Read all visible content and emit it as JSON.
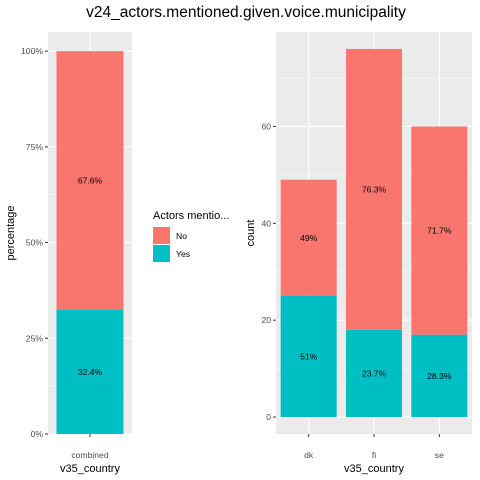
{
  "title": "v24_actors.mentioned.given.voice.municipality",
  "colors": {
    "panel_background": "#ebebeb",
    "grid_major": "#ffffff",
    "grid_minor": "#f5f5f5",
    "no": "#f8766d",
    "yes": "#00bfc4"
  },
  "legend": {
    "title": "Actors mentio...",
    "position": "between panels, middle",
    "items": [
      {
        "label": "No",
        "color": "#f8766d"
      },
      {
        "label": "Yes",
        "color": "#00bfc4"
      }
    ]
  },
  "chart_data": [
    {
      "type": "bar",
      "stacked": true,
      "xlabel": "v35_country",
      "ylabel": "percentage",
      "ylim": [
        0,
        1
      ],
      "y_ticks": [
        0,
        0.25,
        0.5,
        0.75,
        1.0
      ],
      "y_tick_labels": [
        "0%",
        "25%",
        "50%",
        "75%",
        "100%"
      ],
      "categories": [
        "combined"
      ],
      "series": [
        {
          "name": "Yes",
          "values": [
            0.324
          ],
          "labels": [
            "32.4%"
          ]
        },
        {
          "name": "No",
          "values": [
            0.676
          ],
          "labels": [
            "67.6%"
          ]
        }
      ]
    },
    {
      "type": "bar",
      "stacked": true,
      "xlabel": "v35_country",
      "ylabel": "count",
      "ylim": [
        0,
        76
      ],
      "y_ticks": [
        0,
        20,
        40,
        60
      ],
      "y_tick_labels": [
        "0",
        "20",
        "40",
        "60"
      ],
      "categories": [
        "dk",
        "fi",
        "se"
      ],
      "series": [
        {
          "name": "Yes",
          "values": [
            25,
            18,
            17
          ],
          "labels": [
            "51%",
            "23.7%",
            "28.3%"
          ]
        },
        {
          "name": "No",
          "values": [
            24,
            58,
            43
          ],
          "labels": [
            "49%",
            "76.3%",
            "71.7%"
          ]
        }
      ]
    }
  ]
}
